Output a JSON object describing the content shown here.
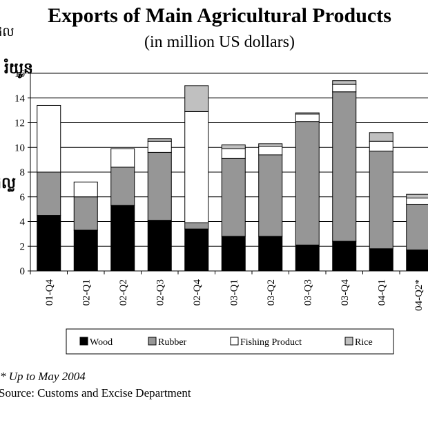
{
  "chart_data": {
    "type": "bar",
    "stacked": true,
    "title": "Exports of Main Agricultural Products",
    "subtitle": "(in million US dollars)",
    "categories": [
      "01-Q4",
      "02-Q1",
      "02-Q2",
      "02-Q3",
      "02-Q4",
      "03-Q1",
      "03-Q2",
      "03-Q3",
      "03-Q4",
      "04-Q1",
      "04-Q2*"
    ],
    "series": [
      {
        "name": "Wood",
        "color": "#000000",
        "values": [
          4.5,
          3.3,
          5.3,
          4.1,
          3.4,
          2.8,
          2.8,
          2.1,
          2.4,
          1.8,
          1.7
        ]
      },
      {
        "name": "Rubber",
        "color": "#969696",
        "values": [
          3.5,
          2.7,
          3.1,
          5.5,
          0.5,
          6.3,
          6.6,
          10.0,
          12.1,
          7.9,
          3.7
        ]
      },
      {
        "name": "Fishing Product",
        "color": "#ffffff",
        "values": [
          5.4,
          1.2,
          1.5,
          0.9,
          9.0,
          0.8,
          0.7,
          0.6,
          0.6,
          0.8,
          0.5
        ]
      },
      {
        "name": "Rice",
        "color": "#c0c0c0",
        "values": [
          0.0,
          0.0,
          0.0,
          0.2,
          2.1,
          0.3,
          0.2,
          0.1,
          0.3,
          0.7,
          0.3
        ]
      }
    ],
    "ylim": [
      0,
      16
    ],
    "yticks": [
      0,
      2,
      4,
      6,
      8,
      10,
      12,
      14,
      16
    ],
    "grid": true,
    "legend_position": "bottom"
  },
  "left_clipped_text": {
    "top": "ផល",
    "ylabel_top": "រំយូន",
    "ylabel_mid": "ដុល្ល"
  },
  "footnote": "* Up to May 2004",
  "source": "Source: Customs and Excise Department"
}
